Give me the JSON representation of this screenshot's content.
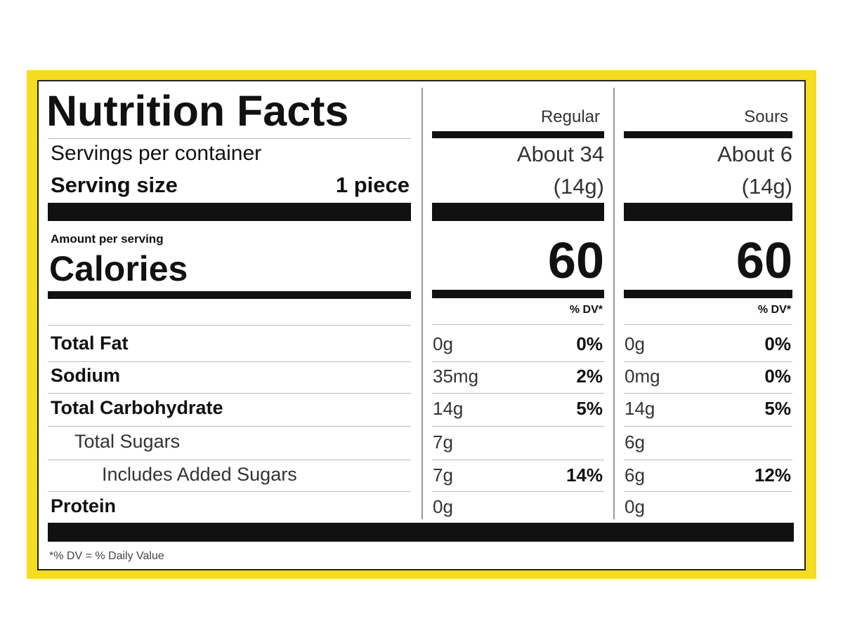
{
  "title": "Nutrition Facts",
  "servings_label": "Servings per container",
  "serving_size_label": "Serving size",
  "serving_size_value": "1 piece",
  "amount_per_serving": "Amount per serving",
  "calories_label": "Calories",
  "columns": [
    {
      "name": "Regular",
      "servings": "About 34",
      "serving_size": "(14g)",
      "calories": 60,
      "dv_header": "% DV*"
    },
    {
      "name": "Sours",
      "servings": "About 6",
      "serving_size": "(14g)",
      "calories": 60,
      "dv_header": "% DV*"
    }
  ],
  "rows": [
    {
      "label": "Total Fat",
      "values": [
        {
          "amount": "0g",
          "dv": "0%"
        },
        {
          "amount": "0g",
          "dv": "0%"
        }
      ]
    },
    {
      "label": "Sodium",
      "values": [
        {
          "amount": "35mg",
          "dv": "2%"
        },
        {
          "amount": "0mg",
          "dv": "0%"
        }
      ]
    },
    {
      "label": "Total Carbohydrate",
      "values": [
        {
          "amount": "14g",
          "dv": "5%"
        },
        {
          "amount": "14g",
          "dv": "5%"
        }
      ]
    },
    {
      "label": "Total Sugars",
      "values": [
        {
          "amount": "7g"
        },
        {
          "amount": "6g"
        }
      ]
    },
    {
      "label": "Includes Added Sugars",
      "values": [
        {
          "amount": "7g",
          "dv": "14%"
        },
        {
          "amount": "6g",
          "dv": "12%"
        }
      ]
    },
    {
      "label": "Protein",
      "values": [
        {
          "amount": "0g"
        },
        {
          "amount": "0g"
        }
      ]
    }
  ],
  "footnote": "*% DV = % Daily Value"
}
